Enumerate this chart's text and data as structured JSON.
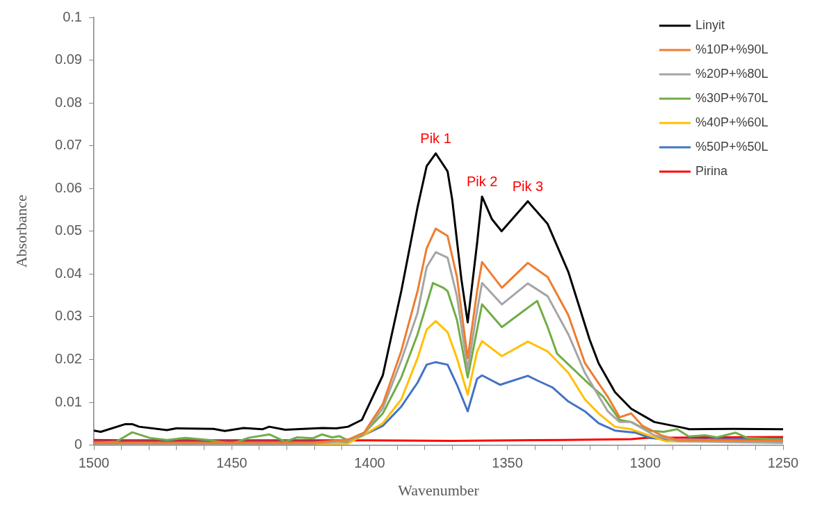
{
  "chart_data": {
    "type": "line",
    "xlabel": "Wavenumber",
    "ylabel": "Absorbance",
    "legend": "top right",
    "xlim": [
      1500,
      1250
    ],
    "xticks": [
      1500,
      {
        "value": 1490,
        "label": null
      },
      {
        "value": 1480,
        "label": null
      },
      {
        "value": 1470,
        "label": null
      },
      {
        "value": 1460,
        "label": null
      },
      1450,
      {
        "value": 1440,
        "label": null
      },
      {
        "value": 1430,
        "label": null
      },
      {
        "value": 1420,
        "label": null
      },
      {
        "value": 1410,
        "label": null
      },
      1400,
      {
        "value": 1390,
        "label": null
      },
      {
        "value": 1380,
        "label": null
      },
      {
        "value": 1370,
        "label": null
      },
      {
        "value": 1360,
        "label": null
      },
      1350,
      {
        "value": 1340,
        "label": null
      },
      {
        "value": 1330,
        "label": null
      },
      {
        "value": 1320,
        "label": null
      },
      {
        "value": 1310,
        "label": null
      },
      1300,
      {
        "value": 1290,
        "label": null
      },
      {
        "value": 1280,
        "label": null
      },
      {
        "value": 1270,
        "label": null
      },
      {
        "value": 1260,
        "label": null
      },
      1250
    ],
    "ylim": [
      0,
      0.1
    ],
    "yticks": [
      0,
      0.01,
      0.02,
      0.03,
      0.04,
      0.05,
      0.06,
      0.07,
      0.08,
      0.09,
      0.1
    ],
    "annotations": [
      {
        "text": "Pik 1",
        "x": 1376,
        "y": 0.0682
      },
      {
        "text": "Pik 2",
        "x": 1359.2,
        "y": 0.0581
      },
      {
        "text": "Pik 3",
        "x": 1342.6,
        "y": 0.057
      }
    ],
    "series": [
      {
        "name": "Linyit",
        "color": "#000000",
        "x": [
          1500,
          1497.5,
          1488.6,
          1486.1,
          1483.6,
          1473.5,
          1470.2,
          1456.6,
          1452.5,
          1445.7,
          1438.9,
          1436.4,
          1430.6,
          1417.2,
          1412.1,
          1407.8,
          1402.8,
          1395.2,
          1388.5,
          1382.6,
          1379.3,
          1376,
          1371.7,
          1370,
          1366.7,
          1364.4,
          1361,
          1359.2,
          1355.6,
          1352.1,
          1342.6,
          1335.4,
          1327.9,
          1320.2,
          1316.9,
          1311,
          1305.1,
          1296.7,
          1286.6,
          1284,
          1268,
          1250
        ],
        "values": [
          0.0034,
          0.0031,
          0.0049,
          0.0049,
          0.0043,
          0.0035,
          0.0039,
          0.0038,
          0.0033,
          0.004,
          0.0037,
          0.0043,
          0.0036,
          0.004,
          0.0039,
          0.0043,
          0.0059,
          0.0163,
          0.036,
          0.0556,
          0.0652,
          0.0682,
          0.064,
          0.0573,
          0.0388,
          0.0287,
          0.0472,
          0.0581,
          0.0528,
          0.05,
          0.057,
          0.0517,
          0.0405,
          0.0247,
          0.0191,
          0.0124,
          0.0085,
          0.0054,
          0.0041,
          0.0037,
          0.0038,
          0.0037
        ]
      },
      {
        "name": "%10P+%90L",
        "color": "#ed7d31",
        "x": [
          1500,
          1450,
          1420,
          1407.8,
          1402,
          1395.2,
          1388.5,
          1382.6,
          1379.3,
          1376,
          1371.7,
          1368.3,
          1364.4,
          1361,
          1359.2,
          1352,
          1342.6,
          1335.4,
          1327.9,
          1321.9,
          1313.6,
          1309.3,
          1305.1,
          1301,
          1294.2,
          1288.4,
          1250
        ],
        "values": [
          0.0005,
          0.0005,
          0.0006,
          0.0013,
          0.0029,
          0.0096,
          0.022,
          0.036,
          0.046,
          0.0506,
          0.0489,
          0.0393,
          0.0203,
          0.036,
          0.0428,
          0.0368,
          0.0426,
          0.0393,
          0.0304,
          0.0192,
          0.0113,
          0.0065,
          0.0074,
          0.0045,
          0.0023,
          0.0012,
          0.001
        ]
      },
      {
        "name": "%20P+%80L",
        "color": "#a5a5a5",
        "x": [
          1500,
          1450,
          1420,
          1407.8,
          1402,
          1395.2,
          1388.5,
          1382.6,
          1379.3,
          1376,
          1371.7,
          1368.3,
          1364.4,
          1361,
          1359.2,
          1352,
          1342.6,
          1335.4,
          1327.9,
          1321.9,
          1313.6,
          1309.3,
          1305.1,
          1296.7,
          1288.4,
          1250
        ],
        "values": [
          0.0003,
          0.0003,
          0.0004,
          0.001,
          0.0027,
          0.0086,
          0.0198,
          0.0309,
          0.0416,
          0.0451,
          0.0438,
          0.0348,
          0.0177,
          0.0315,
          0.0379,
          0.0329,
          0.0378,
          0.0348,
          0.0259,
          0.0169,
          0.0079,
          0.0054,
          0.0054,
          0.0023,
          0.0009,
          0.0005
        ]
      },
      {
        "name": "%30P+%70L",
        "color": "#70ad47",
        "x": [
          1500,
          1491.9,
          1486.1,
          1479.8,
          1473.5,
          1466.7,
          1458.3,
          1450,
          1443.9,
          1436.4,
          1430.6,
          1426.3,
          1420.5,
          1417.2,
          1413.6,
          1411,
          1407.8,
          1402.8,
          1395.2,
          1388.5,
          1382.6,
          1377,
          1373.3,
          1371.7,
          1368.3,
          1364.4,
          1361,
          1359.2,
          1352,
          1343.9,
          1339.2,
          1335.4,
          1332,
          1321.9,
          1315.2,
          1309.3,
          1305.1,
          1299.2,
          1293.3,
          1288.4,
          1284.2,
          1278.3,
          1274,
          1267.3,
          1263,
          1250
        ],
        "values": [
          0.0005,
          0.0008,
          0.003,
          0.0017,
          0.0012,
          0.0017,
          0.0012,
          0.0003,
          0.0017,
          0.0025,
          0.0008,
          0.0018,
          0.0016,
          0.0025,
          0.0018,
          0.0021,
          0.0011,
          0.0022,
          0.0074,
          0.0158,
          0.0259,
          0.0379,
          0.0368,
          0.036,
          0.0293,
          0.0158,
          0.027,
          0.0329,
          0.0276,
          0.0315,
          0.0337,
          0.0276,
          0.0214,
          0.0152,
          0.0113,
          0.0059,
          0.0054,
          0.0034,
          0.0031,
          0.0037,
          0.002,
          0.0023,
          0.0018,
          0.0029,
          0.0017,
          0.0013
        ]
      },
      {
        "name": "%40P+%60L",
        "color": "#ffc000",
        "x": [
          1500,
          1450,
          1407.8,
          1402,
          1395.2,
          1388.5,
          1382.6,
          1379.3,
          1376,
          1371.7,
          1368.3,
          1364.4,
          1361,
          1359.2,
          1352,
          1342.6,
          1335.4,
          1327.9,
          1321.9,
          1316.9,
          1311,
          1305.1,
          1300.1,
          1292.5,
          1250
        ],
        "values": [
          0.0003,
          0.0003,
          0.0004,
          0.0024,
          0.0051,
          0.0107,
          0.0203,
          0.027,
          0.029,
          0.0264,
          0.0203,
          0.0118,
          0.0219,
          0.0243,
          0.0208,
          0.0242,
          0.0219,
          0.0169,
          0.0107,
          0.0074,
          0.0043,
          0.0037,
          0.0026,
          0.0009,
          0.0008
        ]
      },
      {
        "name": "%50P+%50L",
        "color": "#4472c4",
        "x": [
          1500,
          1407.8,
          1402,
          1395.2,
          1388.5,
          1382.6,
          1379.3,
          1376,
          1371.7,
          1368.3,
          1364.4,
          1361,
          1359.2,
          1352.6,
          1342.6,
          1338.8,
          1333.7,
          1327.9,
          1321.9,
          1316.9,
          1311,
          1303.4,
          1298.4,
          1290,
          1250
        ],
        "values": [
          0.0008,
          0.0008,
          0.0024,
          0.0045,
          0.009,
          0.0146,
          0.0188,
          0.0194,
          0.0188,
          0.0141,
          0.0079,
          0.0155,
          0.0163,
          0.0141,
          0.0162,
          0.015,
          0.0135,
          0.0102,
          0.0079,
          0.0051,
          0.0034,
          0.0029,
          0.0017,
          0.0012,
          0.0015
        ]
      },
      {
        "name": "Pirina",
        "color": "#ff0000",
        "x": [
          1500,
          1490,
          1400,
          1370,
          1330,
          1305,
          1300,
          1250
        ],
        "values": [
          0.0012,
          0.0011,
          0.0011,
          0.001,
          0.0012,
          0.0014,
          0.0017,
          0.0019
        ]
      }
    ]
  }
}
